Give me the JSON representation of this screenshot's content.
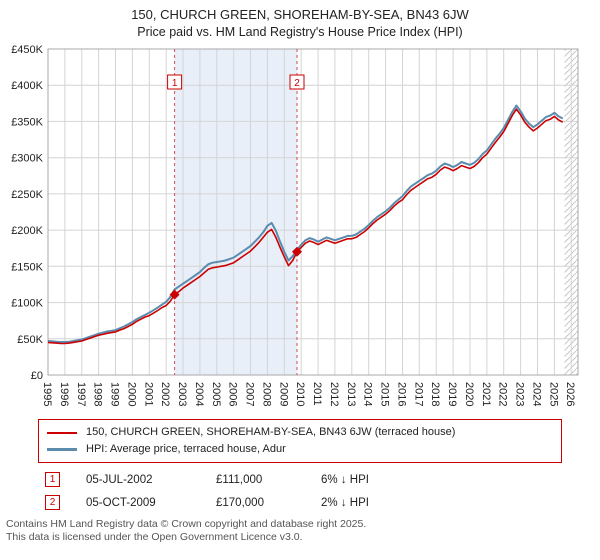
{
  "title": {
    "line1": "150, CHURCH GREEN, SHOREHAM-BY-SEA, BN43 6JW",
    "line2": "Price paid vs. HM Land Registry's House Price Index (HPI)"
  },
  "legend": {
    "items": [
      {
        "label": "150, CHURCH GREEN, SHOREHAM-BY-SEA, BN43 6JW (terraced house)",
        "color": "#cc0000"
      },
      {
        "label": "HPI: Average price, terraced house, Adur",
        "color": "#5b8cae"
      }
    ]
  },
  "annotations": [
    {
      "num": "1",
      "date": "05-JUL-2002",
      "price": "£111,000",
      "hpi": "6% ↓ HPI"
    },
    {
      "num": "2",
      "date": "05-OCT-2009",
      "price": "£170,000",
      "hpi": "2% ↓ HPI"
    }
  ],
  "footer": {
    "line1": "Contains HM Land Registry data © Crown copyright and database right 2025.",
    "line2": "This data is licensed under the Open Government Licence v3.0."
  },
  "accent_red": "#cc0000",
  "chart_data": {
    "type": "line",
    "title": "150, CHURCH GREEN, SHOREHAM-BY-SEA, BN43 6JW — Price paid vs. HPI",
    "unit": "thousands of GBP (£K)",
    "grid_on": true,
    "legend_position": "below",
    "x_start": 1995,
    "x_step": 0.25,
    "x_range": [
      1995,
      2026.4
    ],
    "y_range_k": [
      0,
      450
    ],
    "y_ticks_k": [
      0,
      50,
      100,
      150,
      200,
      250,
      300,
      350,
      400,
      450
    ],
    "y_tick_labels": [
      "£0",
      "£50K",
      "£100K",
      "£150K",
      "£200K",
      "£250K",
      "£300K",
      "£350K",
      "£400K",
      "£450K"
    ],
    "x_ticks": [
      1995,
      1996,
      1997,
      1998,
      1999,
      2000,
      2001,
      2002,
      2003,
      2004,
      2005,
      2006,
      2007,
      2008,
      2009,
      2010,
      2011,
      2012,
      2013,
      2014,
      2015,
      2016,
      2017,
      2018,
      2019,
      2020,
      2021,
      2022,
      2023,
      2024,
      2025,
      2026
    ],
    "grid_color": "#d4d4d4",
    "shade_color": "#e9eff8",
    "hatch_color": "#c8c8c8",
    "sale_line_color": "#d05050",
    "shaded_span": [
      2002.5,
      2009.75
    ],
    "hatch_start": 2025.6,
    "series": [
      {
        "id": "price-paid-line",
        "name": "150, CHURCH GREEN, SHOREHAM-BY-SEA, BN43 6JW (terraced house)",
        "color": "#cc0000",
        "stroke_width": 1.6,
        "values_k": [
          45,
          44.5,
          44,
          43.5,
          43.5,
          44,
          45,
          46,
          47,
          49,
          51,
          53,
          55,
          56,
          57.5,
          58.5,
          59.5,
          62,
          64,
          67,
          70,
          74,
          77,
          80,
          82,
          85.5,
          89,
          93,
          96,
          102,
          111,
          115,
          120,
          124,
          128,
          132,
          136,
          141,
          146,
          148,
          149,
          150,
          151,
          153,
          155,
          159,
          163,
          167,
          171,
          177,
          183,
          190,
          197,
          201,
          190,
          176,
          163,
          151,
          158,
          170,
          176,
          182,
          185,
          183,
          180,
          183,
          186,
          184,
          182,
          184,
          186,
          188,
          188,
          190,
          194,
          198,
          203,
          209,
          214,
          218,
          222,
          227,
          233,
          238,
          242,
          249,
          255,
          259,
          263,
          267,
          271,
          273,
          277,
          283,
          287,
          285,
          282,
          285,
          289,
          287,
          285,
          288,
          293,
          300,
          305,
          313,
          321,
          328,
          336,
          347,
          358,
          367,
          359,
          349,
          342,
          337,
          341,
          346,
          351,
          353,
          357,
          352,
          349
        ]
      },
      {
        "id": "hpi-line",
        "name": "HPI: Average price, terraced house, Adur",
        "color": "#5b8cae",
        "stroke_width": 2,
        "values_k": [
          47,
          46.5,
          46,
          45.5,
          45.5,
          46,
          47,
          48,
          49,
          51,
          53,
          55,
          57,
          58.5,
          60,
          61,
          62,
          64.5,
          67,
          70,
          73,
          77,
          80,
          83,
          86,
          89.5,
          93,
          97,
          101,
          108,
          118,
          122,
          126,
          130,
          134,
          138,
          142,
          148,
          153,
          155,
          156,
          157,
          158,
          160,
          162,
          166,
          170,
          174,
          178,
          184,
          190,
          197,
          206,
          210,
          199,
          184,
          170,
          158,
          164,
          173,
          180,
          186,
          189,
          187,
          184,
          187,
          190,
          188,
          186,
          188,
          190,
          192,
          192,
          194,
          198,
          202,
          207,
          213,
          218,
          222,
          226,
          231,
          237,
          242,
          247,
          254,
          260,
          264,
          268,
          272,
          276,
          278,
          282,
          288,
          292,
          290,
          287,
          290,
          294,
          292,
          290,
          293,
          298,
          305,
          310,
          318,
          326,
          333,
          341,
          352,
          363,
          372,
          364,
          354,
          347,
          342,
          346,
          351,
          356,
          358,
          362,
          357,
          354
        ]
      }
    ],
    "sales": [
      {
        "label": "1",
        "date": "05-JUL-2002",
        "x": 2002.5,
        "value_k": 111,
        "price": "£111,000",
        "vs_hpi": "6% ↓ HPI"
      },
      {
        "label": "2",
        "date": "05-OCT-2009",
        "x": 2009.75,
        "value_k": 170,
        "price": "£170,000",
        "vs_hpi": "2% ↓ HPI"
      }
    ]
  }
}
